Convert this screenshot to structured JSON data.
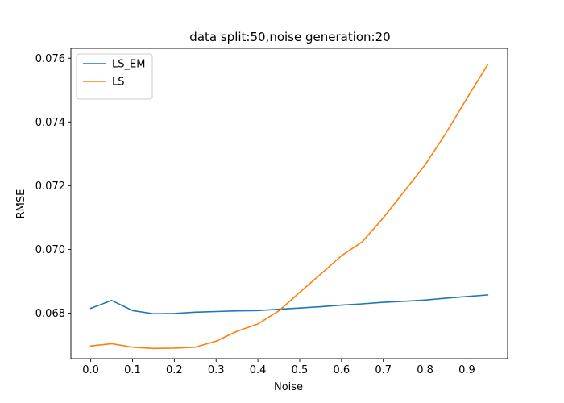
{
  "chart_data": {
    "type": "line",
    "title": "data split:50,noise generation:20",
    "xlabel": "Noise",
    "ylabel": "RMSE",
    "xlim": [
      -0.0475,
      0.9975
    ],
    "ylim": [
      0.06657,
      0.07631
    ],
    "xticks": [
      0.0,
      0.1,
      0.2,
      0.3,
      0.4,
      0.5,
      0.6,
      0.7,
      0.8,
      0.9
    ],
    "xtick_labels": [
      "0.0",
      "0.1",
      "0.2",
      "0.3",
      "0.4",
      "0.5",
      "0.6",
      "0.7",
      "0.8",
      "0.9"
    ],
    "yticks": [
      0.068,
      0.07,
      0.072,
      0.074,
      0.076
    ],
    "ytick_labels": [
      "0.068",
      "0.070",
      "0.072",
      "0.074",
      "0.076"
    ],
    "grid": false,
    "legend_position": "top-left",
    "x": [
      0.0,
      0.05,
      0.1,
      0.15,
      0.2,
      0.25,
      0.3,
      0.35,
      0.4,
      0.45,
      0.5,
      0.55,
      0.6,
      0.65,
      0.7,
      0.75,
      0.8,
      0.85,
      0.9,
      0.95
    ],
    "series": [
      {
        "name": "LS_EM",
        "color": "#1f77b4",
        "values": [
          0.06815,
          0.0684,
          0.06808,
          0.06798,
          0.06799,
          0.06803,
          0.06805,
          0.06807,
          0.06808,
          0.06812,
          0.06816,
          0.0682,
          0.06825,
          0.06829,
          0.06834,
          0.06837,
          0.06841,
          0.06847,
          0.06852,
          0.06857
        ]
      },
      {
        "name": "LS",
        "color": "#ff7f0e",
        "values": [
          0.06697,
          0.06704,
          0.06693,
          0.06689,
          0.0669,
          0.06693,
          0.06712,
          0.06743,
          0.06766,
          0.06807,
          0.06865,
          0.06922,
          0.0698,
          0.07024,
          0.07099,
          0.07182,
          0.07265,
          0.07365,
          0.07474,
          0.0758
        ]
      }
    ]
  }
}
